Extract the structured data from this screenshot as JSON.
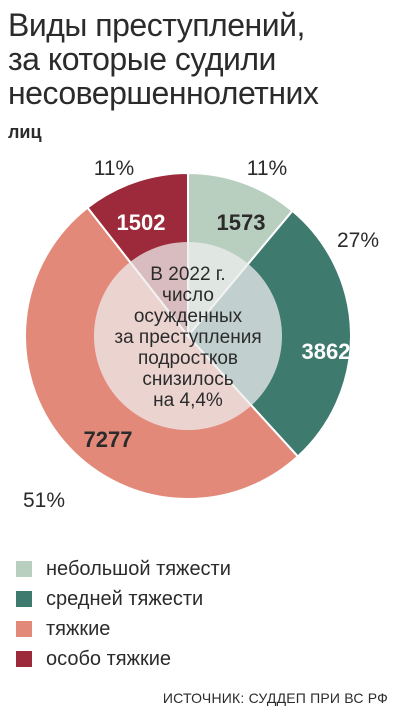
{
  "title": {
    "lines": [
      "Виды преступлений,",
      "за которые судили",
      "несовершеннолетних"
    ],
    "tail": "лиц"
  },
  "colors": {
    "light": "#b8cfc0",
    "medium": "#3f7a6f",
    "heavy": "#e2897a",
    "very_heavy": "#9c2a3a",
    "center": "#ededed"
  },
  "chart_data": {
    "type": "pie",
    "title": "Виды преступлений, за которые судили несовершеннолетних лиц",
    "categories": [
      "небольшой тяжести",
      "средней тяжести",
      "тяжкие",
      "особо тяжкие"
    ],
    "values": [
      1573,
      3862,
      7277,
      1502
    ],
    "percent_labels": [
      "11%",
      "27%",
      "51%",
      "11%"
    ],
    "colors": [
      "#b8cfc0",
      "#3f7a6f",
      "#e2897a",
      "#9c2a3a"
    ],
    "donut": true,
    "legend_position": "bottom-left",
    "center_text": [
      "В 2022 г.",
      "число",
      "осужденных",
      "за преступления",
      "подростков",
      "снизилось",
      "на 4,4%"
    ]
  },
  "source": "ИСТОЧНИК: СУДДЕП ПРИ ВС РФ"
}
